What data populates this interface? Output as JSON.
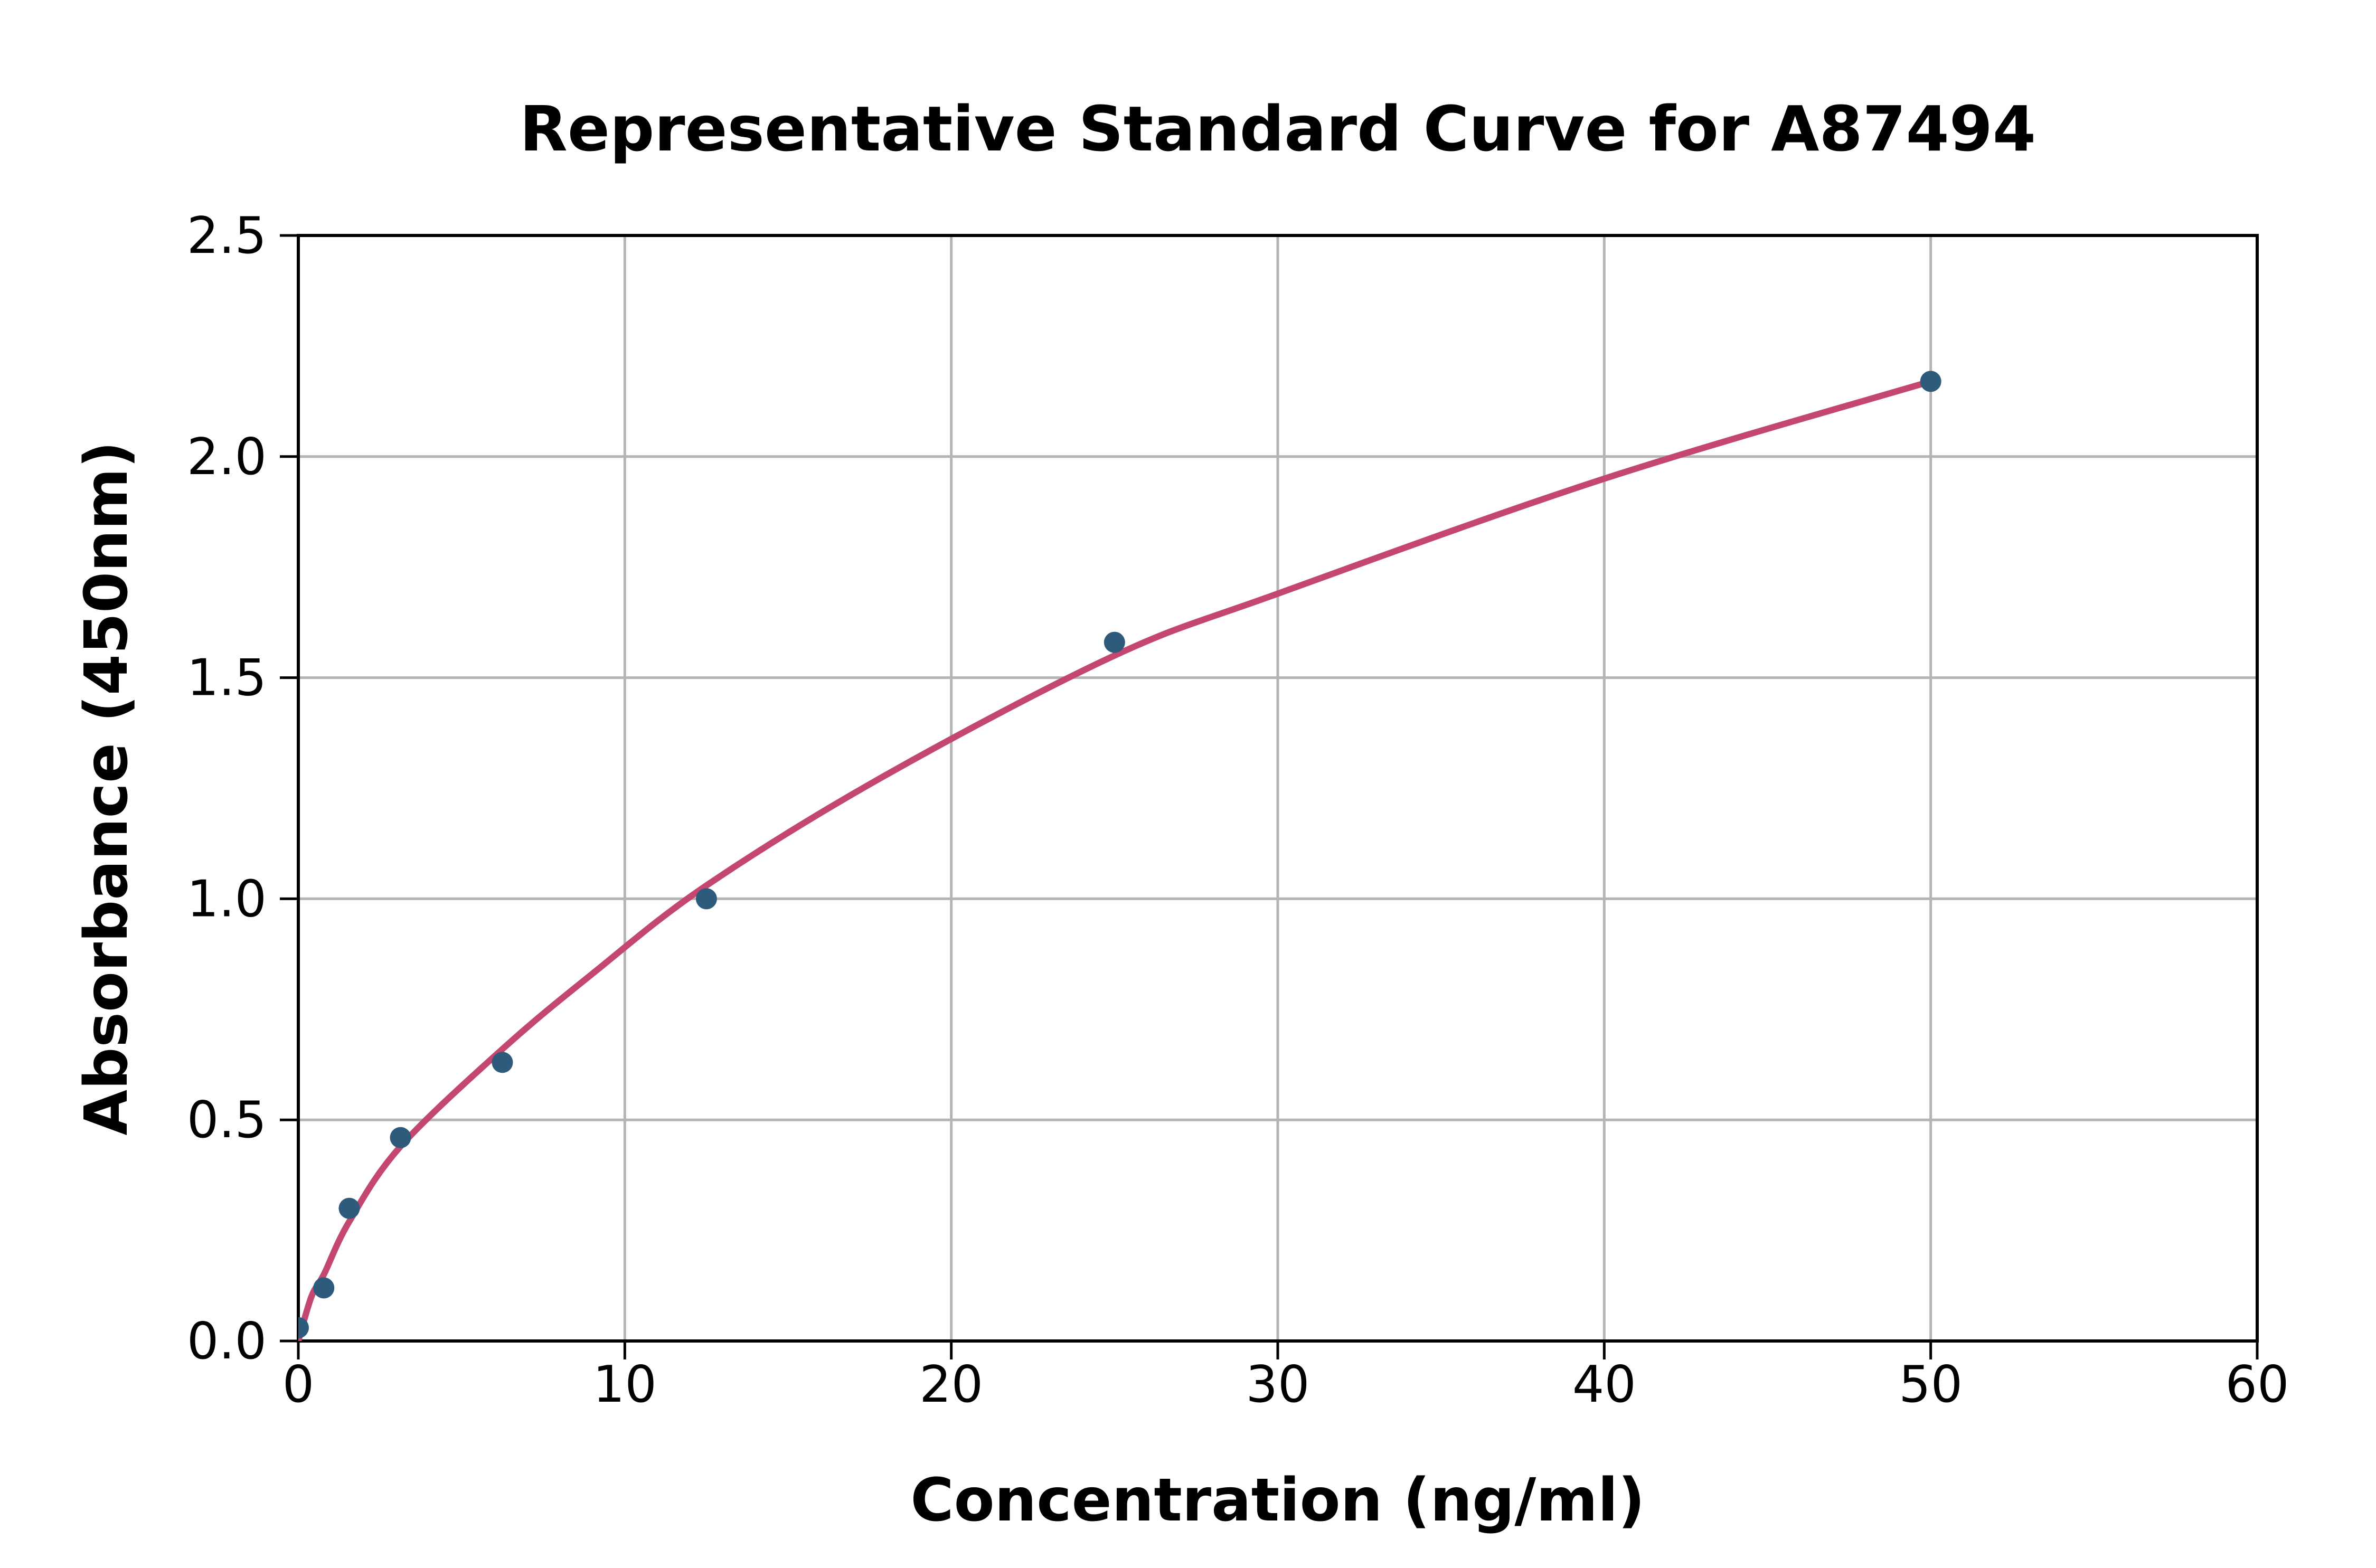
{
  "chart_data": {
    "type": "scatter",
    "title": "Representative Standard Curve for A87494",
    "xlabel": "Concentration (ng/ml)",
    "ylabel": "Absorbance (450nm)",
    "xlim": [
      0,
      60
    ],
    "ylim": [
      0,
      2.5
    ],
    "x_ticks": [
      0,
      10,
      20,
      30,
      40,
      50,
      60
    ],
    "x_tick_labels": [
      "0",
      "10",
      "20",
      "30",
      "40",
      "50",
      "60"
    ],
    "y_ticks": [
      0,
      0.5,
      1.0,
      1.5,
      2.0,
      2.5
    ],
    "y_tick_labels": [
      "0.0",
      "0.5",
      "1.0",
      "1.5",
      "2.0",
      "2.5"
    ],
    "grid": true,
    "legend": "none",
    "series": [
      {
        "name": "standards",
        "type": "scatter",
        "x": [
          0,
          0.78,
          1.56,
          3.13,
          6.25,
          12.5,
          25,
          50
        ],
        "y": [
          0.03,
          0.12,
          0.3,
          0.46,
          0.63,
          1.0,
          1.58,
          2.17
        ]
      },
      {
        "name": "fitted-standard-curve",
        "type": "line",
        "points": [
          [
            0,
            0
          ],
          [
            0.4,
            0.1
          ],
          [
            0.78,
            0.15
          ],
          [
            1.56,
            0.27
          ],
          [
            3.13,
            0.44
          ],
          [
            6.25,
            0.66
          ],
          [
            9,
            0.83
          ],
          [
            12.5,
            1.03
          ],
          [
            18,
            1.28
          ],
          [
            25,
            1.55
          ],
          [
            30,
            1.69
          ],
          [
            40,
            1.95
          ],
          [
            50,
            2.17
          ]
        ]
      }
    ],
    "colors": {
      "curve": "#C3476F",
      "marker": "#2E5A7C",
      "grid": "#B4B4B4",
      "spine": "#000000",
      "text": "#000000",
      "background": "#FFFFFF"
    }
  }
}
